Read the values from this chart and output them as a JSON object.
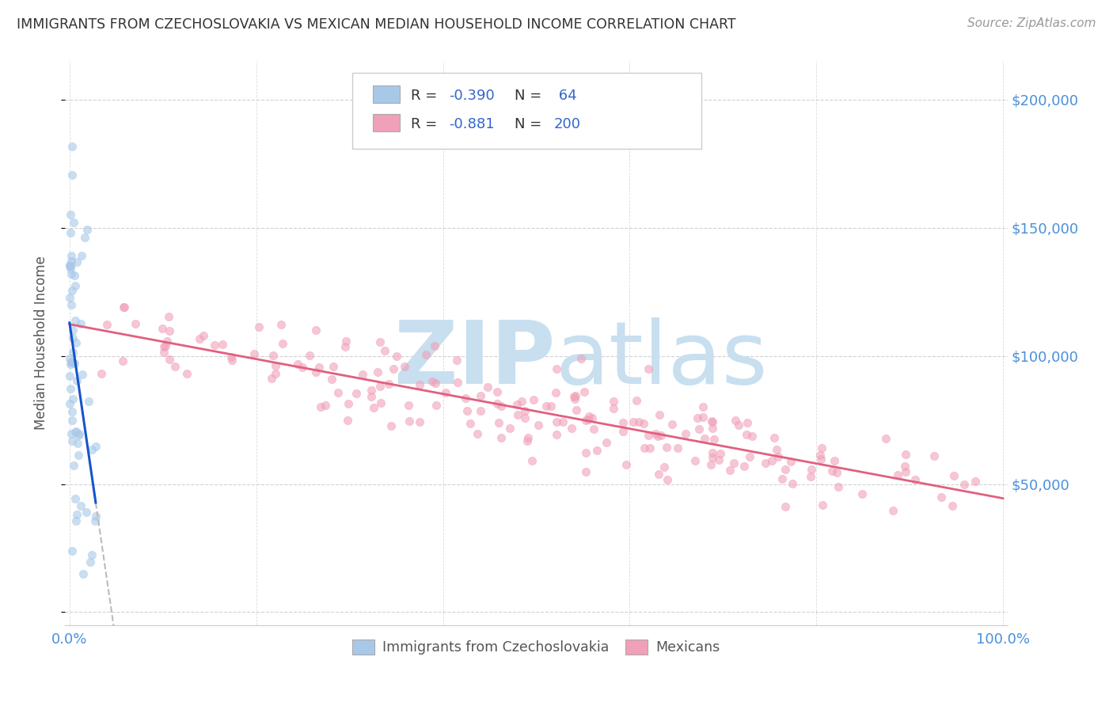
{
  "title": "IMMIGRANTS FROM CZECHOSLOVAKIA VS MEXICAN MEDIAN HOUSEHOLD INCOME CORRELATION CHART",
  "source": "Source: ZipAtlas.com",
  "ylabel": "Median Household Income",
  "background_color": "#ffffff",
  "blue_color": "#a8c8e8",
  "pink_color": "#f0a0b8",
  "blue_line_color": "#1555cc",
  "pink_line_color": "#e06080",
  "dashed_line_color": "#bbbbbb",
  "title_color": "#333333",
  "source_color": "#999999",
  "axis_color": "#4a90d9",
  "legend_color": "#3366cc",
  "watermark_zip_color": "#c8dff0",
  "watermark_atlas_color": "#c8dff0",
  "grid_color": "#cccccc",
  "scatter_alpha": 0.6,
  "blue_scatter_size": 55,
  "pink_scatter_size": 55,
  "seed": 42,
  "yticks": [
    0,
    50000,
    100000,
    150000,
    200000
  ],
  "ytick_labels": [
    "",
    "$50,000",
    "$100,000",
    "$150,000",
    "$200,000"
  ],
  "ylim": [
    -5000,
    215000
  ],
  "xlim": [
    -0.005,
    1.005
  ],
  "R_blue": -0.39,
  "N_blue": 64,
  "R_pink": -0.881,
  "N_pink": 200
}
